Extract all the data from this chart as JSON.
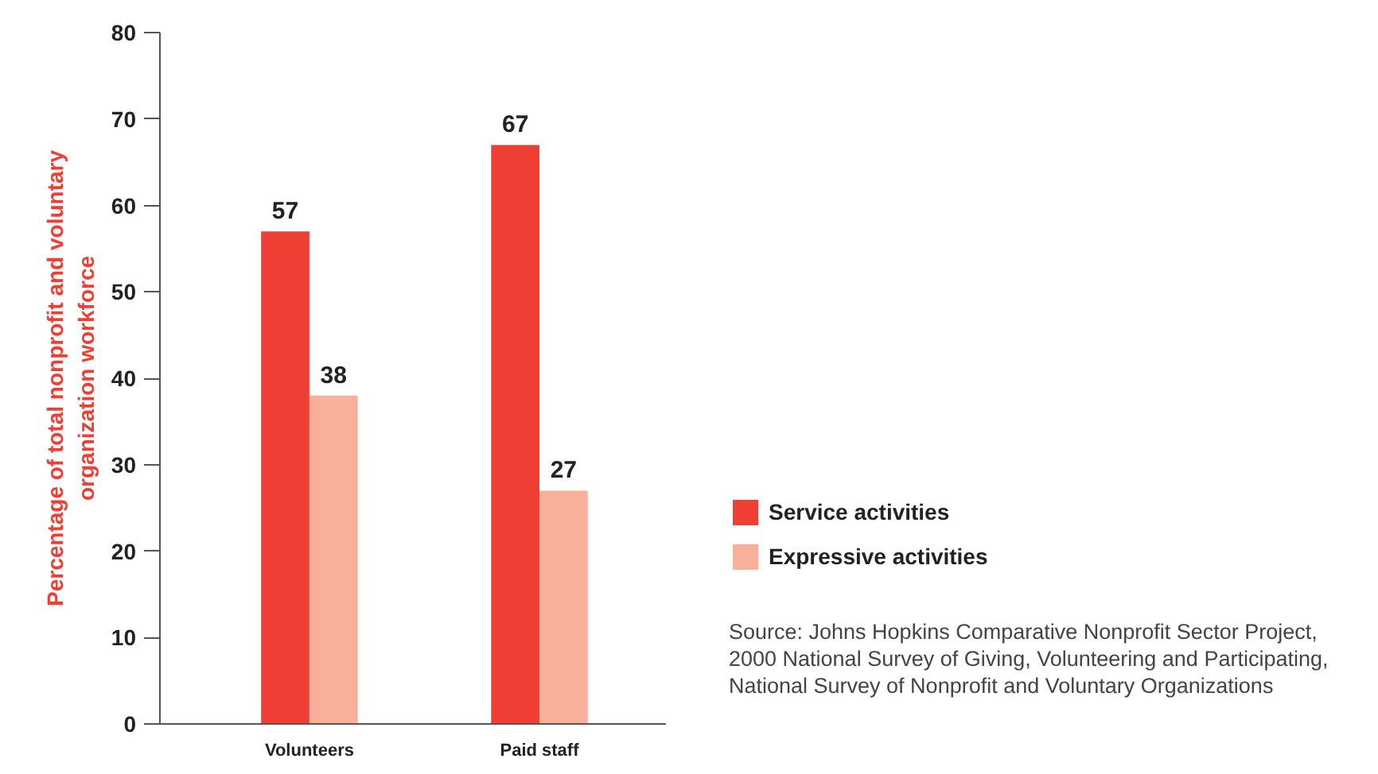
{
  "chart_data": {
    "type": "bar",
    "ylabel": "Percentage of total nonprofit and voluntary\norganization workforce",
    "categories": [
      "Volunteers",
      "Paid staff"
    ],
    "series": [
      {
        "name": "Service activities",
        "color": "#ef3e33",
        "values": [
          57,
          67
        ]
      },
      {
        "name": "Expressive activities",
        "color": "#f8b09a",
        "values": [
          38,
          27
        ]
      }
    ],
    "ylim": [
      0,
      80
    ],
    "yticks": [
      0,
      10,
      20,
      30,
      40,
      50,
      60,
      70,
      80
    ],
    "grid": false,
    "legend": "right",
    "data_labels": true,
    "annotations": [
      "Source:  Johns Hopkins Comparative Nonprofit Sector Project,\n2000 National Survey of Giving, Volunteering and Participating,\nNational Survey of Nonprofit and Voluntary Organizations"
    ]
  }
}
